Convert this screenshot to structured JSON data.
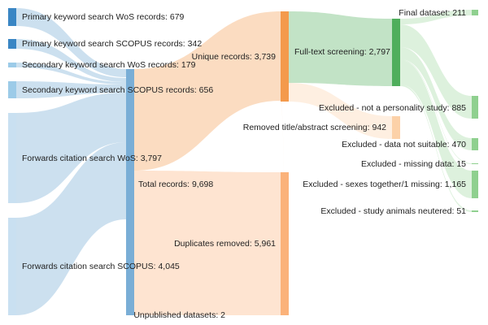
{
  "diagram": {
    "type": "sankey",
    "nodes": [
      {
        "id": "pk_wos",
        "label": "Primary keyword search WoS records: 679",
        "color": "#3a86c4"
      },
      {
        "id": "pk_scopus",
        "label": "Primary keyword search SCOPUS records: 342",
        "color": "#3a86c4"
      },
      {
        "id": "sk_wos",
        "label": "Secondary keyword search WoS records: 179",
        "color": "#9ccbe8"
      },
      {
        "id": "sk_scopus",
        "label": "Secondary keyword search SCOPUS records: 656",
        "color": "#9ccbe8"
      },
      {
        "id": "fc_wos",
        "label": "Forwards citation search WoS: 3,797",
        "color": "#c9e0f1"
      },
      {
        "id": "fc_scopus",
        "label": "Forwards citation search SCOPUS: 4,045",
        "color": "#c9e0f1"
      },
      {
        "id": "total",
        "label": "Total records: 9,698",
        "color": "#7aaed6"
      },
      {
        "id": "unique",
        "label": "Unique records: 3,739",
        "color": "#f49a4c"
      },
      {
        "id": "duplicates",
        "label": "Duplicates removed: 5,961",
        "color": "#fbb27a"
      },
      {
        "id": "unpublished",
        "label": "Unpublished datasets: 2",
        "color": "#fbb27a"
      },
      {
        "id": "fulltext",
        "label": "Full-text screening: 2,797",
        "color": "#4fae5c"
      },
      {
        "id": "removed_ta",
        "label": "Removed title/abstract screening: 942",
        "color": "#fcd1a8"
      },
      {
        "id": "final",
        "label": "Final dataset: 211",
        "color": "#8fd08f"
      },
      {
        "id": "ex_personality",
        "label": "Excluded - not a personality study: 885",
        "color": "#8fd08f"
      },
      {
        "id": "ex_data",
        "label": "Excluded - data not suitable: 470",
        "color": "#8fd08f"
      },
      {
        "id": "ex_missing",
        "label": "Excluded - missing data: 15",
        "color": "#8fd08f"
      },
      {
        "id": "ex_sexes",
        "label": "Excluded - sexes together/1 missing: 1,165",
        "color": "#8fd08f"
      },
      {
        "id": "ex_neutered",
        "label": "Excluded - study animals neutered: 51",
        "color": "#8fd08f"
      }
    ],
    "links": [
      {
        "source": "pk_wos",
        "target": "total",
        "value": 679
      },
      {
        "source": "pk_scopus",
        "target": "total",
        "value": 342
      },
      {
        "source": "sk_wos",
        "target": "total",
        "value": 179
      },
      {
        "source": "sk_scopus",
        "target": "total",
        "value": 656
      },
      {
        "source": "fc_wos",
        "target": "total",
        "value": 3797
      },
      {
        "source": "fc_scopus",
        "target": "total",
        "value": 4045
      },
      {
        "source": "total",
        "target": "unique",
        "value": 3737
      },
      {
        "source": "total",
        "target": "duplicates",
        "value": 5961
      },
      {
        "source": "unpublished",
        "target": "unique",
        "value": 2
      },
      {
        "source": "unique",
        "target": "fulltext",
        "value": 2797
      },
      {
        "source": "unique",
        "target": "removed_ta",
        "value": 942
      },
      {
        "source": "fulltext",
        "target": "final",
        "value": 211
      },
      {
        "source": "fulltext",
        "target": "ex_personality",
        "value": 885
      },
      {
        "source": "fulltext",
        "target": "ex_data",
        "value": 470
      },
      {
        "source": "fulltext",
        "target": "ex_missing",
        "value": 15
      },
      {
        "source": "fulltext",
        "target": "ex_sexes",
        "value": 1165
      },
      {
        "source": "fulltext",
        "target": "ex_neutered",
        "value": 51
      }
    ]
  }
}
